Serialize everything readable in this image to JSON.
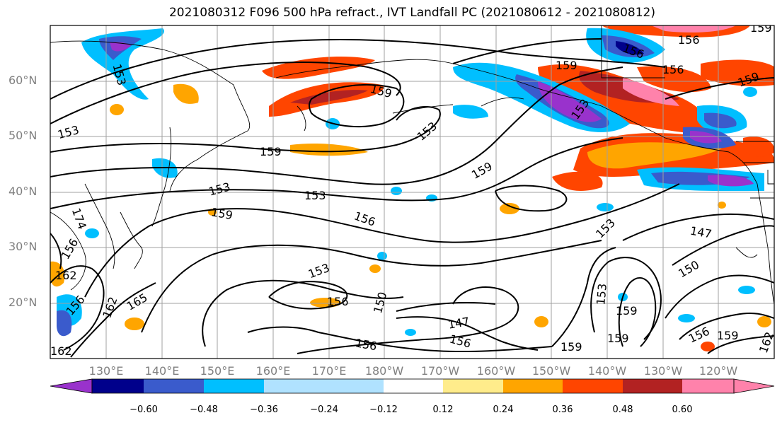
{
  "title": "2021080312 F096 500 hPa refract., IVT Landfall PC (2021080612 - 2021080812)",
  "lat_labels": [
    "60°N",
    "50°N",
    "40°N",
    "30°N",
    "20°N"
  ],
  "lon_labels": [
    "130°E",
    "140°E",
    "150°E",
    "160°E",
    "170°E",
    "180°W",
    "170°W",
    "160°W",
    "150°W",
    "140°W",
    "130°W",
    "120°W"
  ],
  "colorbar": {
    "colors": [
      "#9932cc",
      "#00008b",
      "#3a5bcc",
      "#00bfff",
      "#b0e2ff",
      "#ffffff",
      "#ffec8b",
      "#ffa500",
      "#ff4500",
      "#b22222",
      "#ff82ab"
    ],
    "ticks": [
      "−0.60",
      "−0.48",
      "−0.36",
      "−0.24",
      "−0.12",
      "0.12",
      "0.24",
      "0.36",
      "0.48",
      "0.60"
    ]
  },
  "contour_labels": [
    "153",
    "159",
    "156",
    "156",
    "159",
    "153",
    "159",
    "153",
    "156",
    "153",
    "159",
    "153",
    "159",
    "153",
    "153",
    "159",
    "156",
    "147",
    "150",
    "153",
    "159",
    "159",
    "156",
    "159",
    "162",
    "156",
    "147",
    "156",
    "159",
    "162",
    "165",
    "156",
    "150",
    "153",
    "162",
    "156",
    "174",
    "156",
    "162",
    "159"
  ]
}
